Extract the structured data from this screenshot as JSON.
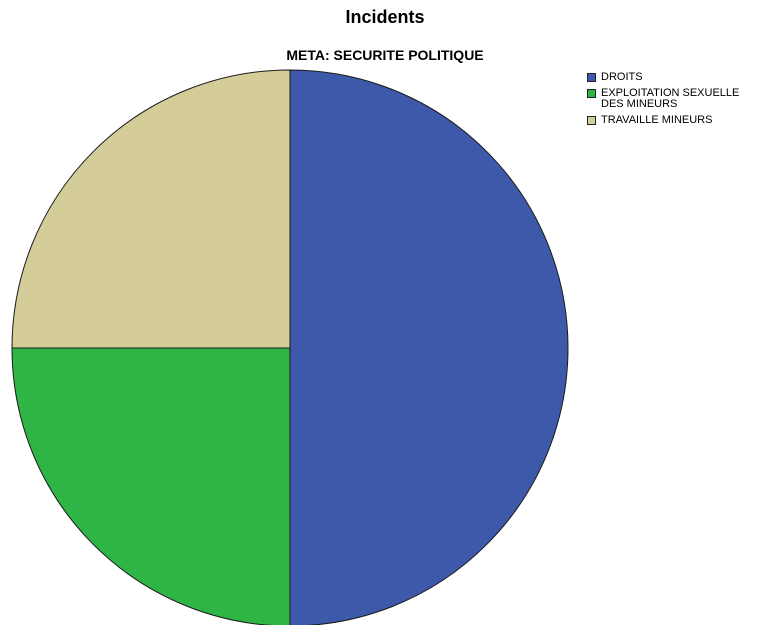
{
  "chart_data": {
    "type": "pie",
    "title": "Incidents",
    "subtitle": "META: SECURITE POLITIQUE",
    "legend_position": "top-right",
    "start_angle_deg": 0,
    "direction": "clockwise",
    "slices": [
      {
        "label": "DROITS",
        "value": 50,
        "color": "#3e59aa"
      },
      {
        "label": "EXPLOITATION SEXUELLE DES MINEURS",
        "value": 25,
        "color": "#2fb546"
      },
      {
        "label": "TRAVAILLE MINEURS",
        "value": 25,
        "color": "#d4cd9a"
      }
    ],
    "legend": [
      {
        "label": "DROITS",
        "color": "#3e59aa"
      },
      {
        "label": "EXPLOITATION SEXUELLE DES MINEURS",
        "color": "#2fb546"
      },
      {
        "label": "TRAVAILLE MINEURS",
        "color": "#d4cd9a"
      }
    ]
  }
}
